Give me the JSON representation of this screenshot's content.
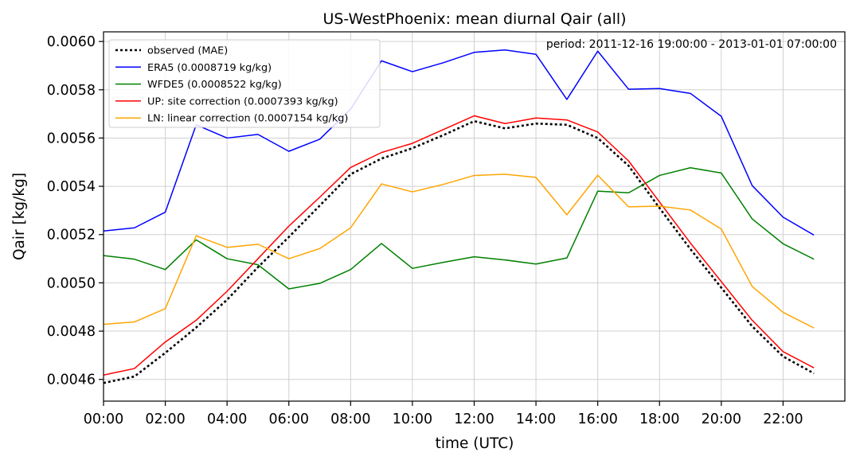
{
  "chart_data": {
    "type": "line",
    "title": "US-WestPhoenix: mean diurnal Qair (all)",
    "xlabel": "time (UTC)",
    "ylabel": "Qair [kg/kg]",
    "annotation": "period: 2011-12-16 19:00:00 - 2013-01-01 07:00:00",
    "x": [
      "00:00",
      "01:00",
      "02:00",
      "03:00",
      "04:00",
      "05:00",
      "06:00",
      "07:00",
      "08:00",
      "09:00",
      "10:00",
      "11:00",
      "12:00",
      "13:00",
      "14:00",
      "15:00",
      "16:00",
      "17:00",
      "18:00",
      "19:00",
      "20:00",
      "21:00",
      "22:00",
      "23:00"
    ],
    "xticks": [
      "00:00",
      "02:00",
      "04:00",
      "06:00",
      "08:00",
      "10:00",
      "12:00",
      "14:00",
      "16:00",
      "18:00",
      "20:00",
      "22:00"
    ],
    "xlim": [
      0,
      24
    ],
    "yticks": [
      "0.0046",
      "0.0048",
      "0.0050",
      "0.0052",
      "0.0054",
      "0.0056",
      "0.0058",
      "0.0060"
    ],
    "ylim": [
      0.00451,
      0.00604
    ],
    "grid": true,
    "legend_position": "top-left",
    "series": [
      {
        "name": "observed (MAE)",
        "color": "#000000",
        "style": "dotted",
        "values": [
          0.004585,
          0.004612,
          0.00471,
          0.004815,
          0.00493,
          0.005065,
          0.00519,
          0.00532,
          0.00545,
          0.005515,
          0.005558,
          0.005612,
          0.00567,
          0.00564,
          0.00566,
          0.005655,
          0.0056,
          0.005485,
          0.00531,
          0.00514,
          0.00498,
          0.00482,
          0.004695,
          0.004625
        ]
      },
      {
        "name": "ERA5 (0.0008719 kg/kg)",
        "color": "#0000ff",
        "style": "solid",
        "values": [
          0.005215,
          0.005228,
          0.005293,
          0.005655,
          0.0056,
          0.005615,
          0.005545,
          0.005595,
          0.00572,
          0.00592,
          0.005875,
          0.005912,
          0.005955,
          0.005965,
          0.005947,
          0.00576,
          0.00596,
          0.005802,
          0.005805,
          0.005785,
          0.00569,
          0.005403,
          0.005272,
          0.005198
        ]
      },
      {
        "name": "WFDE5 (0.0008522 kg/kg)",
        "color": "#008000",
        "style": "solid",
        "values": [
          0.005113,
          0.005098,
          0.005055,
          0.005178,
          0.0051,
          0.005075,
          0.004975,
          0.004998,
          0.005055,
          0.005163,
          0.00506,
          0.005085,
          0.005108,
          0.005095,
          0.005078,
          0.005103,
          0.00538,
          0.005373,
          0.005445,
          0.005477,
          0.005455,
          0.005265,
          0.005162,
          0.005098
        ]
      },
      {
        "name": "UP: site correction (0.0007393 kg/kg)",
        "color": "#ff0000",
        "style": "solid",
        "values": [
          0.004618,
          0.004645,
          0.004755,
          0.004845,
          0.004965,
          0.0051,
          0.005235,
          0.005355,
          0.005478,
          0.00554,
          0.005578,
          0.005635,
          0.005692,
          0.00566,
          0.005683,
          0.005675,
          0.005625,
          0.005505,
          0.005335,
          0.005165,
          0.005005,
          0.004845,
          0.004715,
          0.004648
        ]
      },
      {
        "name": "LN: linear correction (0.0007154 kg/kg)",
        "color": "#ffa500",
        "style": "solid",
        "values": [
          0.004828,
          0.004838,
          0.004893,
          0.005195,
          0.005147,
          0.00516,
          0.0051,
          0.005142,
          0.005228,
          0.00541,
          0.005377,
          0.005408,
          0.005445,
          0.00545,
          0.005437,
          0.005282,
          0.005446,
          0.005315,
          0.005318,
          0.005302,
          0.005223,
          0.004985,
          0.004878,
          0.004813
        ]
      }
    ]
  }
}
